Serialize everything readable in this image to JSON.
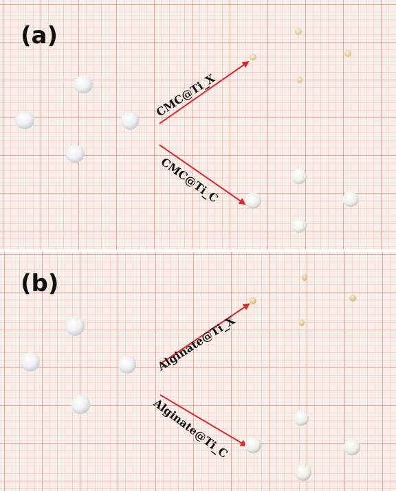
{
  "figure": {
    "panel_a": {
      "label": "(a)",
      "arrow_top_label": "CMC@Ti_X",
      "arrow_bottom_label": "CMC@Ti_C"
    },
    "panel_b": {
      "label": "(b)",
      "arrow_top_label": "Alginate@Ti_X",
      "arrow_bottom_label": "Alginate@Ti_C"
    },
    "colors": {
      "paper": "#f6ece8",
      "grid_minor": "#efb7a6",
      "grid_major": "#e58a70",
      "arrow": "#e0262a",
      "label": "#111111",
      "bead_wet": "#f5f6f8",
      "bead_dry_x": "#eed9ad",
      "bead_dry_c": "#f7f7f5"
    }
  }
}
